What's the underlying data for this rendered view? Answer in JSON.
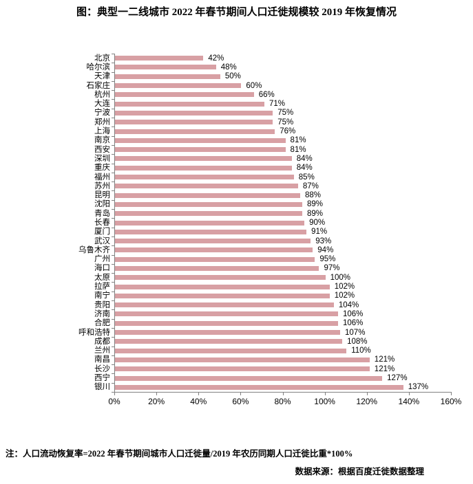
{
  "colors": {
    "bar": "#D8A0A4",
    "axis": "#808080",
    "text": "#000000",
    "background": "#FFFFFF"
  },
  "note": "注：人口流动恢复率=2022 年春节期间城市人口迁徙量/2019 年农历同期人口迁徙比重*100%",
  "source": "数据来源：根据百度迁徙数据整理",
  "chart_data": {
    "type": "bar",
    "orientation": "horizontal",
    "title": "图：典型一二线城市 2022 年春节期间人口迁徙规模较 2019 年恢复情况",
    "xlabel": "",
    "ylabel": "",
    "xlim": [
      0,
      160
    ],
    "x_ticks": [
      "0%",
      "20%",
      "40%",
      "60%",
      "80%",
      "100%",
      "120%",
      "140%",
      "160%"
    ],
    "grid": false,
    "legend": false,
    "value_label_suffix": "%",
    "categories": [
      "北京",
      "哈尔滨",
      "天津",
      "石家庄",
      "杭州",
      "大连",
      "宁波",
      "郑州",
      "上海",
      "南京",
      "西安",
      "深圳",
      "重庆",
      "福州",
      "苏州",
      "昆明",
      "沈阳",
      "青岛",
      "长春",
      "厦门",
      "武汉",
      "乌鲁木齐",
      "广州",
      "海口",
      "太原",
      "拉萨",
      "南宁",
      "贵阳",
      "济南",
      "合肥",
      "呼和浩特",
      "成都",
      "兰州",
      "南昌",
      "长沙",
      "西宁",
      "银川"
    ],
    "values": [
      42,
      48,
      50,
      60,
      66,
      71,
      75,
      75,
      76,
      81,
      81,
      84,
      84,
      85,
      87,
      88,
      89,
      89,
      90,
      91,
      93,
      94,
      95,
      97,
      100,
      102,
      102,
      104,
      106,
      106,
      107,
      108,
      110,
      121,
      121,
      127,
      137
    ]
  }
}
